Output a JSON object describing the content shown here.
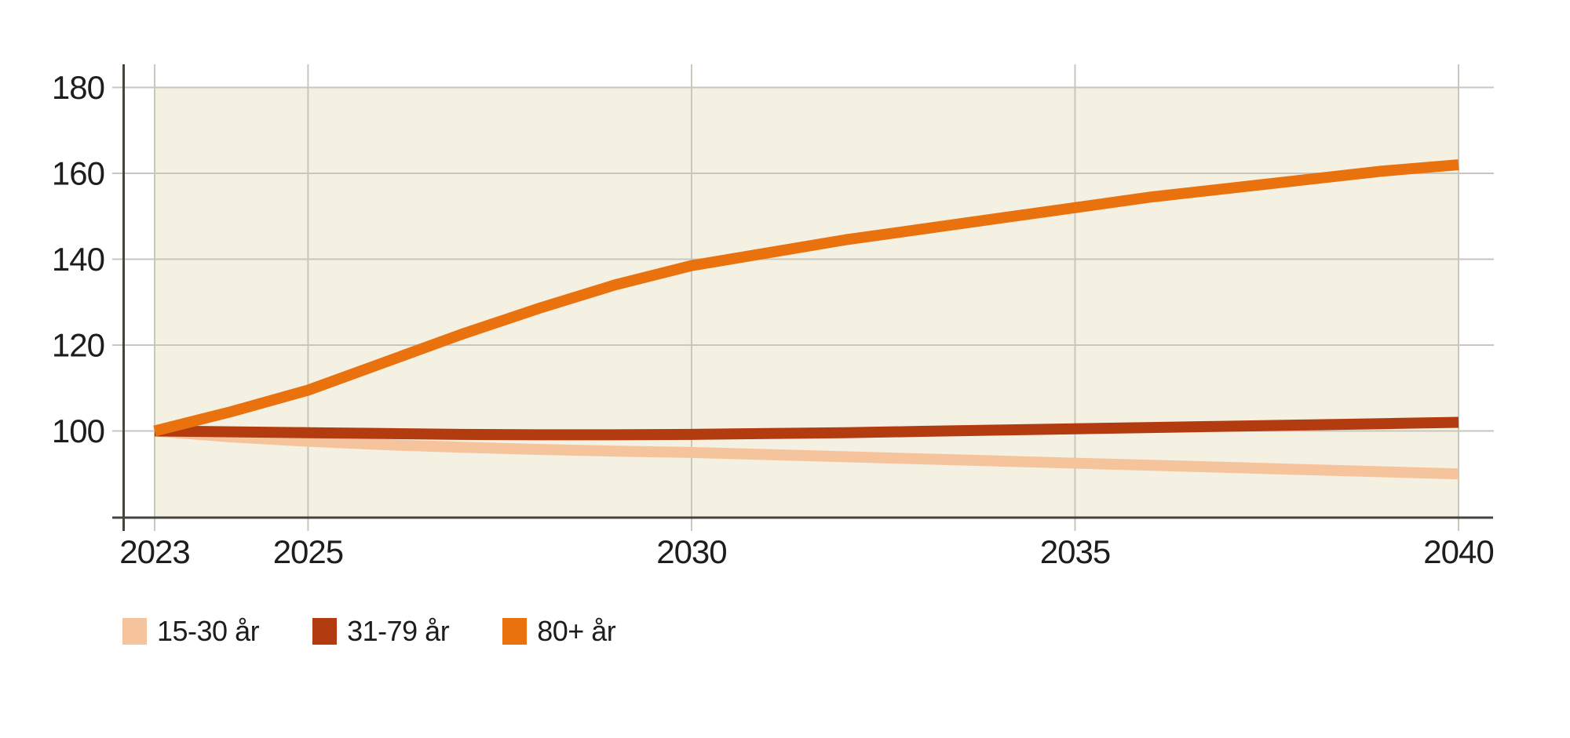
{
  "chart_data": {
    "type": "line",
    "title": "",
    "x": [
      2023,
      2024,
      2025,
      2026,
      2027,
      2028,
      2029,
      2030,
      2031,
      2032,
      2033,
      2034,
      2035,
      2036,
      2037,
      2038,
      2039,
      2040
    ],
    "x_ticks": [
      {
        "label": "2023",
        "year": 2023
      },
      {
        "label": "2025",
        "year": 2025
      },
      {
        "label": "2030",
        "year": 2030
      },
      {
        "label": "2035",
        "year": 2035
      },
      {
        "label": "2040",
        "year": 2040
      }
    ],
    "y_ticks": [
      {
        "label": "100",
        "value": 100
      },
      {
        "label": "120",
        "value": 120
      },
      {
        "label": "140",
        "value": 140
      },
      {
        "label": "160",
        "value": 160
      },
      {
        "label": "180",
        "value": 180
      }
    ],
    "xlim": [
      2023,
      2040
    ],
    "ylim": [
      80,
      180
    ],
    "grid": true,
    "legend_position": "bottom-left",
    "colors": {
      "plot_bg": "#f4f1e2",
      "grid": "#c9c6bd",
      "axis": "#45443e",
      "tick_label": "#1d1d1b"
    },
    "series": [
      {
        "name": "15-30 år",
        "color": "#f6c49c",
        "values": [
          100,
          98.6,
          97.6,
          96.8,
          96.2,
          95.7,
          95.3,
          95.0,
          94.5,
          94.0,
          93.5,
          93.0,
          92.5,
          92.0,
          91.5,
          91.0,
          90.5,
          90.0
        ]
      },
      {
        "name": "31-79 år",
        "color": "#b23c10",
        "values": [
          100,
          99.8,
          99.6,
          99.4,
          99.2,
          99.1,
          99.1,
          99.2,
          99.4,
          99.6,
          99.9,
          100.2,
          100.5,
          100.8,
          101.1,
          101.4,
          101.7,
          102.0
        ]
      },
      {
        "name": "80+ år",
        "color": "#ea720e",
        "values": [
          100,
          104.5,
          109.5,
          116.0,
          122.5,
          128.5,
          134.0,
          138.5,
          141.5,
          144.5,
          147.0,
          149.5,
          152.0,
          154.5,
          156.5,
          158.5,
          160.5,
          162.0
        ]
      }
    ]
  }
}
